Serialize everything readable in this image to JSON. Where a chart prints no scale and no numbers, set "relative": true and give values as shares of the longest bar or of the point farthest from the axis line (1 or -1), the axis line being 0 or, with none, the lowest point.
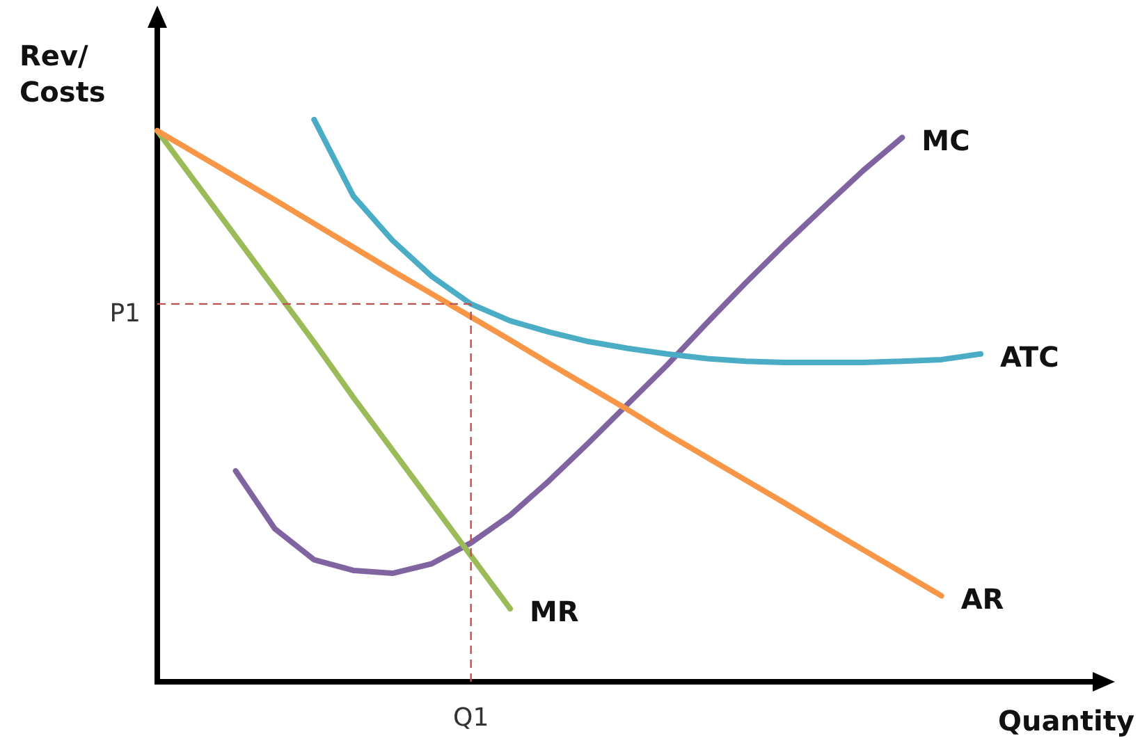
{
  "chart_data": {
    "type": "line",
    "relative": true,
    "xlabel": "Quantity",
    "ylabel": "Rev/\nCosts",
    "legend": false,
    "grid": false,
    "marker": "none",
    "line_style": "solid",
    "tick_labels": false,
    "annotations": [
      "Q1"
    ],
    "categories": [
      null,
      null,
      null,
      null,
      null,
      null,
      null,
      null,
      null,
      null,
      null,
      null,
      null,
      null,
      null,
      null,
      null,
      null,
      null,
      null,
      null,
      null,
      null,
      null,
      null
    ],
    "series": [
      {
        "name": "ATC",
        "color": "#4bacc6",
        "values": [
          null,
          null,
          null,
          null,
          1.0,
          0.864,
          0.785,
          0.721,
          0.672,
          0.642,
          0.622,
          0.605,
          0.593,
          0.583,
          0.575,
          0.57,
          0.568,
          0.568,
          0.568,
          0.57,
          0.573,
          0.583,
          null,
          null,
          null
        ]
      },
      {
        "name": "AR",
        "color": "#f79646",
        "values": [
          0.98,
          0.939,
          0.898,
          0.857,
          0.815,
          0.773,
          0.731,
          0.69,
          0.649,
          0.608,
          0.566,
          0.525,
          0.484,
          0.441,
          0.4,
          0.359,
          0.318,
          0.276,
          0.235,
          0.194,
          0.153,
          null,
          null,
          null,
          null
        ]
      },
      {
        "name": "MR",
        "color": "#9bbb59",
        "values": [
          0.98,
          0.886,
          0.792,
          0.698,
          0.604,
          0.506,
          0.412,
          0.318,
          0.224,
          0.13,
          null,
          null,
          null,
          null,
          null,
          null,
          null,
          null,
          null,
          null,
          null,
          null,
          null,
          null,
          null
        ]
      },
      {
        "name": "MC",
        "color": "#8064a2",
        "values": [
          null,
          null,
          0.375,
          0.272,
          0.217,
          0.198,
          0.193,
          0.21,
          0.247,
          0.296,
          0.358,
          0.425,
          0.494,
          0.563,
          0.637,
          0.709,
          0.778,
          0.844,
          0.909,
          0.968,
          null,
          null,
          null,
          null,
          null
        ]
      }
    ],
    "ref_lines": [
      {
        "axis": "y",
        "value": 0.672,
        "label": "P1",
        "color": "#c0504d",
        "line_style": "dashed"
      }
    ]
  }
}
